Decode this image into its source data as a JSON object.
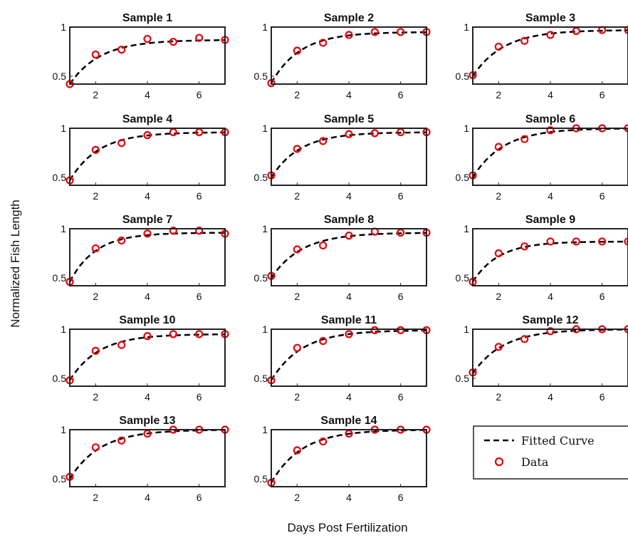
{
  "figure": {
    "ylabel": "Normalized Fish Length",
    "xlabel": "Days Post Fertilization",
    "legend": {
      "placement": "bottom-right",
      "entries": [
        {
          "label": "Fitted Curve",
          "style": "dashed-line",
          "color": "#000000"
        },
        {
          "label": "Data",
          "style": "circle-marker",
          "color": "#e8000b"
        }
      ]
    }
  },
  "chart_data": [
    {
      "type": "scatter",
      "title": "Sample 1",
      "x": [
        1,
        2,
        3,
        4,
        5,
        6,
        7
      ],
      "values": [
        0.42,
        0.72,
        0.77,
        0.88,
        0.85,
        0.89,
        0.87
      ],
      "fit": {
        "ymin": 0.42,
        "ymax": 0.87,
        "k": 0.85
      },
      "xlim": [
        1,
        7
      ],
      "ylim": [
        0.42,
        1.0
      ],
      "xticks": [
        2,
        4,
        6
      ],
      "yticks": [
        0.5,
        1
      ]
    },
    {
      "type": "scatter",
      "title": "Sample 2",
      "x": [
        1,
        2,
        3,
        4,
        5,
        6,
        7
      ],
      "values": [
        0.43,
        0.76,
        0.84,
        0.92,
        0.95,
        0.95,
        0.95
      ],
      "fit": {
        "ymin": 0.43,
        "ymax": 0.95,
        "k": 0.9
      },
      "xlim": [
        1,
        7
      ],
      "ylim": [
        0.42,
        1.0
      ],
      "xticks": [
        2,
        4,
        6
      ],
      "yticks": [
        0.5,
        1
      ]
    },
    {
      "type": "scatter",
      "title": "Sample 3",
      "x": [
        1,
        2,
        3,
        4,
        5,
        6,
        7
      ],
      "values": [
        0.51,
        0.8,
        0.86,
        0.92,
        0.96,
        0.97,
        0.97
      ],
      "fit": {
        "ymin": 0.5,
        "ymax": 0.97,
        "k": 0.85
      },
      "xlim": [
        1,
        7
      ],
      "ylim": [
        0.42,
        1.0
      ],
      "xticks": [
        2,
        4,
        6
      ],
      "yticks": [
        0.5,
        1
      ]
    },
    {
      "type": "scatter",
      "title": "Sample 4",
      "x": [
        1,
        2,
        3,
        4,
        5,
        6,
        7
      ],
      "values": [
        0.47,
        0.78,
        0.85,
        0.93,
        0.96,
        0.96,
        0.96
      ],
      "fit": {
        "ymin": 0.47,
        "ymax": 0.96,
        "k": 0.9
      },
      "xlim": [
        1,
        7
      ],
      "ylim": [
        0.42,
        1.0
      ],
      "xticks": [
        2,
        4,
        6
      ],
      "yticks": [
        0.5,
        1
      ]
    },
    {
      "type": "scatter",
      "title": "Sample 5",
      "x": [
        1,
        2,
        3,
        4,
        5,
        6,
        7
      ],
      "values": [
        0.52,
        0.79,
        0.87,
        0.94,
        0.95,
        0.96,
        0.96
      ],
      "fit": {
        "ymin": 0.5,
        "ymax": 0.96,
        "k": 0.9
      },
      "xlim": [
        1,
        7
      ],
      "ylim": [
        0.42,
        1.0
      ],
      "xticks": [
        2,
        4,
        6
      ],
      "yticks": [
        0.5,
        1
      ]
    },
    {
      "type": "scatter",
      "title": "Sample 6",
      "x": [
        1,
        2,
        3,
        4,
        5,
        6,
        7
      ],
      "values": [
        0.52,
        0.81,
        0.89,
        0.98,
        1.0,
        1.0,
        1.0
      ],
      "fit": {
        "ymin": 0.5,
        "ymax": 1.0,
        "k": 0.85
      },
      "xlim": [
        1,
        7
      ],
      "ylim": [
        0.42,
        1.0
      ],
      "xticks": [
        2,
        4,
        6
      ],
      "yticks": [
        0.5,
        1
      ]
    },
    {
      "type": "scatter",
      "title": "Sample 7",
      "x": [
        1,
        2,
        3,
        4,
        5,
        6,
        7
      ],
      "values": [
        0.46,
        0.8,
        0.88,
        0.95,
        0.98,
        0.98,
        0.95
      ],
      "fit": {
        "ymin": 0.46,
        "ymax": 0.96,
        "k": 1.0
      },
      "xlim": [
        1,
        7
      ],
      "ylim": [
        0.42,
        1.0
      ],
      "xticks": [
        2,
        4,
        6
      ],
      "yticks": [
        0.5,
        1
      ]
    },
    {
      "type": "scatter",
      "title": "Sample 8",
      "x": [
        1,
        2,
        3,
        4,
        5,
        6,
        7
      ],
      "values": [
        0.52,
        0.79,
        0.83,
        0.93,
        0.97,
        0.96,
        0.96
      ],
      "fit": {
        "ymin": 0.5,
        "ymax": 0.96,
        "k": 0.85
      },
      "xlim": [
        1,
        7
      ],
      "ylim": [
        0.42,
        1.0
      ],
      "xticks": [
        2,
        4,
        6
      ],
      "yticks": [
        0.5,
        1
      ]
    },
    {
      "type": "scatter",
      "title": "Sample 9",
      "x": [
        1,
        2,
        3,
        4,
        5,
        6,
        7
      ],
      "values": [
        0.46,
        0.75,
        0.82,
        0.87,
        0.87,
        0.87,
        0.87
      ],
      "fit": {
        "ymin": 0.46,
        "ymax": 0.87,
        "k": 1.0
      },
      "xlim": [
        1,
        7
      ],
      "ylim": [
        0.42,
        1.0
      ],
      "xticks": [
        2,
        4,
        6
      ],
      "yticks": [
        0.5,
        1
      ]
    },
    {
      "type": "scatter",
      "title": "Sample 10",
      "x": [
        1,
        2,
        3,
        4,
        5,
        6,
        7
      ],
      "values": [
        0.48,
        0.78,
        0.84,
        0.93,
        0.95,
        0.95,
        0.95
      ],
      "fit": {
        "ymin": 0.48,
        "ymax": 0.95,
        "k": 0.9
      },
      "xlim": [
        1,
        7
      ],
      "ylim": [
        0.42,
        1.0
      ],
      "xticks": [
        2,
        4,
        6
      ],
      "yticks": [
        0.5,
        1
      ]
    },
    {
      "type": "scatter",
      "title": "Sample 11",
      "x": [
        1,
        2,
        3,
        4,
        5,
        6,
        7
      ],
      "values": [
        0.48,
        0.81,
        0.88,
        0.95,
        0.99,
        0.99,
        0.99
      ],
      "fit": {
        "ymin": 0.48,
        "ymax": 0.99,
        "k": 0.85
      },
      "xlim": [
        1,
        7
      ],
      "ylim": [
        0.42,
        1.0
      ],
      "xticks": [
        2,
        4,
        6
      ],
      "yticks": [
        0.5,
        1
      ]
    },
    {
      "type": "scatter",
      "title": "Sample 12",
      "x": [
        1,
        2,
        3,
        4,
        5,
        6,
        7
      ],
      "values": [
        0.56,
        0.82,
        0.9,
        0.98,
        1.0,
        1.0,
        1.0
      ],
      "fit": {
        "ymin": 0.55,
        "ymax": 1.0,
        "k": 0.85
      },
      "xlim": [
        1,
        7
      ],
      "ylim": [
        0.42,
        1.0
      ],
      "xticks": [
        2,
        4,
        6
      ],
      "yticks": [
        0.5,
        1
      ]
    },
    {
      "type": "scatter",
      "title": "Sample 13",
      "x": [
        1,
        2,
        3,
        4,
        5,
        6,
        7
      ],
      "values": [
        0.52,
        0.82,
        0.89,
        0.96,
        1.0,
        1.0,
        1.0
      ],
      "fit": {
        "ymin": 0.5,
        "ymax": 1.0,
        "k": 0.85
      },
      "xlim": [
        1,
        7
      ],
      "ylim": [
        0.42,
        1.0
      ],
      "xticks": [
        2,
        4,
        6
      ],
      "yticks": [
        0.5,
        1
      ]
    },
    {
      "type": "scatter",
      "title": "Sample 14",
      "x": [
        1,
        2,
        3,
        4,
        5,
        6,
        7
      ],
      "values": [
        0.46,
        0.79,
        0.88,
        0.96,
        1.0,
        1.0,
        1.0
      ],
      "fit": {
        "ymin": 0.46,
        "ymax": 1.0,
        "k": 0.85
      },
      "xlim": [
        1,
        7
      ],
      "ylim": [
        0.42,
        1.0
      ],
      "xticks": [
        2,
        4,
        6
      ],
      "yticks": [
        0.5,
        1
      ]
    }
  ]
}
